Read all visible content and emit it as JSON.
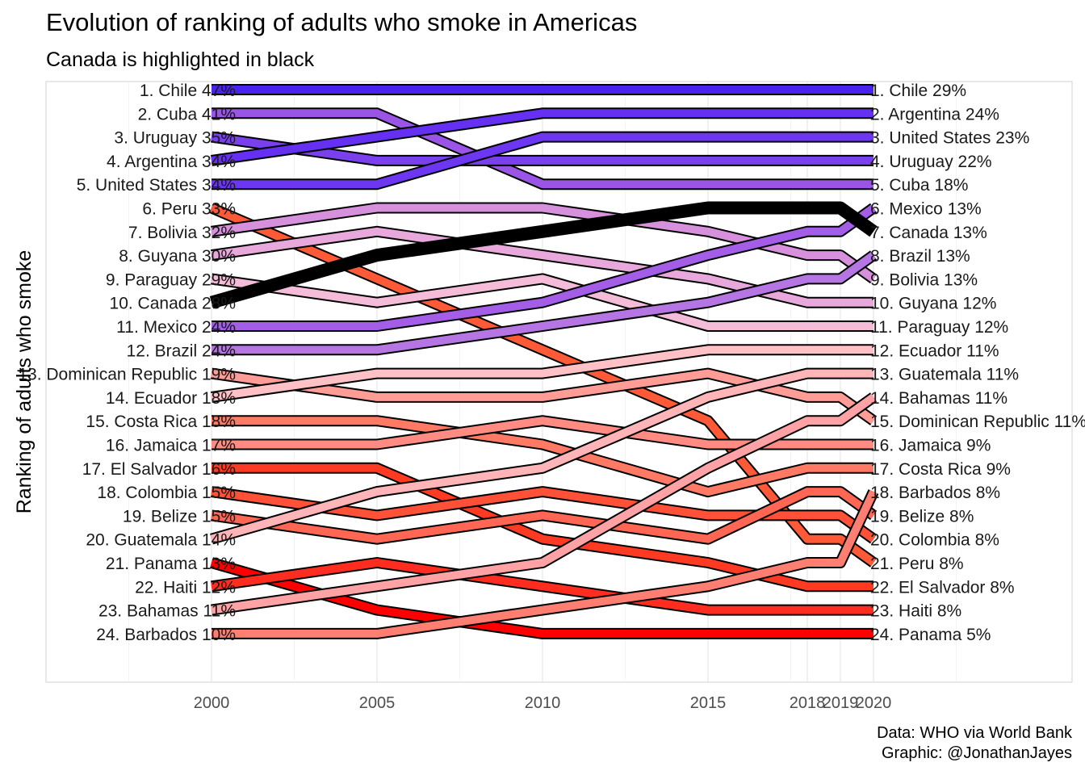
{
  "title": "Evolution of ranking of adults who smoke in Americas",
  "subtitle": "Canada is highlighted in black",
  "caption": [
    "Data: WHO via World Bank",
    "Graphic: @JonathanJayes"
  ],
  "chart_data": {
    "type": "line",
    "title": "Evolution of ranking of adults who smoke in Americas",
    "subtitle": "Canada is highlighted in black",
    "xlabel": "",
    "ylabel": "Ranking of adults who smoke",
    "x": [
      2000,
      2005,
      2010,
      2015,
      2018,
      2019,
      2020
    ],
    "x_ticks": [
      "2000",
      "2005",
      "2010",
      "2015",
      "2018",
      "2019",
      "2020"
    ],
    "xlim": [
      1995,
      2026
    ],
    "ylim": [
      25,
      0
    ],
    "y_reversed": true,
    "grid": true,
    "legend": "none",
    "highlight": "Canada",
    "highlight_color": "#000000",
    "left_labels": [
      "1. Chile 47%",
      "2. Cuba 41%",
      "3. Uruguay 35%",
      "4. Argentina 34%",
      "5. United States 34%",
      "6. Peru 33%",
      "7. Bolivia 32%",
      "8. Guyana 30%",
      "9. Paraguay 29%",
      "10. Canada 28%",
      "11. Mexico 24%",
      "12. Brazil 24%",
      "13. Dominican Republic 19%",
      "14. Ecuador 18%",
      "15. Costa Rica 18%",
      "16. Jamaica 17%",
      "17. El Salvador 16%",
      "18. Colombia 15%",
      "19. Belize 15%",
      "20. Guatemala 14%",
      "21. Panama 13%",
      "22. Haiti 12%",
      "23. Bahamas 11%",
      "24. Barbados 10%"
    ],
    "right_labels": [
      "1. Chile 29%",
      "2. Argentina 24%",
      "3. United States 23%",
      "4. Uruguay 22%",
      "5. Cuba 18%",
      "6. Mexico 13%",
      "7. Canada 13%",
      "8. Brazil 13%",
      "9. Bolivia 13%",
      "10. Guyana 12%",
      "11. Paraguay 12%",
      "12. Ecuador 11%",
      "13. Guatemala 11%",
      "14. Bahamas 11%",
      "15. Dominican Republic 11%",
      "16. Jamaica 9%",
      "17. Costa Rica 9%",
      "18. Barbados 8%",
      "19. Belize 8%",
      "20. Colombia 8%",
      "21. Peru 8%",
      "22. El Salvador 8%",
      "23. Haiti 8%",
      "24. Panama 5%"
    ],
    "series": [
      {
        "name": "Chile",
        "color": "#4a22f0",
        "values": [
          1,
          1,
          1,
          1,
          1,
          1,
          1
        ]
      },
      {
        "name": "Cuba",
        "color": "#9a55e6",
        "values": [
          2,
          2,
          5,
          5,
          5,
          5,
          5
        ]
      },
      {
        "name": "Uruguay",
        "color": "#7b40ee",
        "values": [
          3,
          4,
          4,
          4,
          4,
          4,
          4
        ]
      },
      {
        "name": "Argentina",
        "color": "#6630f2",
        "values": [
          4,
          3,
          2,
          2,
          2,
          2,
          2
        ]
      },
      {
        "name": "United States",
        "color": "#6d36f0",
        "values": [
          5,
          5,
          3,
          3,
          3,
          3,
          3
        ]
      },
      {
        "name": "Peru",
        "color": "#ff5a38",
        "values": [
          6,
          9,
          12,
          15,
          20,
          20,
          21
        ]
      },
      {
        "name": "Bolivia",
        "color": "#d690dc",
        "values": [
          7,
          6,
          6,
          7,
          8,
          8,
          9
        ]
      },
      {
        "name": "Guyana",
        "color": "#e9a8dc",
        "values": [
          8,
          7,
          8,
          9,
          10,
          10,
          10
        ]
      },
      {
        "name": "Paraguay",
        "color": "#f4bcd8",
        "values": [
          9,
          10,
          9,
          11,
          11,
          11,
          11
        ]
      },
      {
        "name": "Canada",
        "color": "#000000",
        "values": [
          10,
          8,
          7,
          6,
          6,
          6,
          7
        ]
      },
      {
        "name": "Mexico",
        "color": "#a35de6",
        "values": [
          11,
          11,
          10,
          8,
          7,
          7,
          6
        ]
      },
      {
        "name": "Brazil",
        "color": "#b575e2",
        "values": [
          12,
          12,
          11,
          10,
          9,
          9,
          8
        ]
      },
      {
        "name": "Dominican Republic",
        "color": "#ff9c96",
        "values": [
          13,
          14,
          14,
          13,
          14,
          14,
          15
        ]
      },
      {
        "name": "Ecuador",
        "color": "#ffc0c6",
        "values": [
          14,
          13,
          13,
          12,
          12,
          12,
          12
        ]
      },
      {
        "name": "Costa Rica",
        "color": "#ff7a64",
        "values": [
          15,
          15,
          16,
          18,
          17,
          17,
          17
        ]
      },
      {
        "name": "Jamaica",
        "color": "#ff8b82",
        "values": [
          16,
          16,
          15,
          16,
          16,
          16,
          16
        ]
      },
      {
        "name": "El Salvador",
        "color": "#ff3a22",
        "values": [
          17,
          17,
          20,
          21,
          22,
          22,
          22
        ]
      },
      {
        "name": "Colombia",
        "color": "#ff5038",
        "values": [
          18,
          19,
          18,
          19,
          19,
          19,
          20
        ]
      },
      {
        "name": "Belize",
        "color": "#ff6654",
        "values": [
          19,
          20,
          19,
          20,
          18,
          18,
          19
        ]
      },
      {
        "name": "Guatemala",
        "color": "#ffb4b8",
        "values": [
          20,
          18,
          17,
          14,
          13,
          13,
          13
        ]
      },
      {
        "name": "Panama",
        "color": "#ff0000",
        "values": [
          21,
          23,
          24,
          24,
          24,
          24,
          24
        ]
      },
      {
        "name": "Haiti",
        "color": "#ff2d20",
        "values": [
          22,
          21,
          22,
          23,
          23,
          23,
          23
        ]
      },
      {
        "name": "Bahamas",
        "color": "#ffa2a6",
        "values": [
          23,
          22,
          21,
          17,
          15,
          15,
          14
        ]
      },
      {
        "name": "Barbados",
        "color": "#ff7e72",
        "values": [
          24,
          24,
          23,
          22,
          21,
          21,
          18
        ]
      }
    ]
  }
}
